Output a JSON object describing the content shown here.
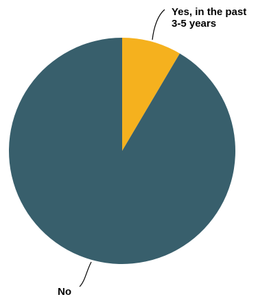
{
  "chart_data": {
    "type": "pie",
    "title": "",
    "slices": [
      {
        "label_lines": [
          "Yes, in the past",
          "3-5 years"
        ],
        "value": 8.5,
        "color": "#F5B11E"
      },
      {
        "label_lines": [
          "No"
        ],
        "value": 91.5,
        "color": "#385F6C"
      }
    ],
    "start_angle_deg": 0,
    "direction": "clockwise",
    "legend": "none",
    "labels_position": "outside-with-leader-lines"
  }
}
